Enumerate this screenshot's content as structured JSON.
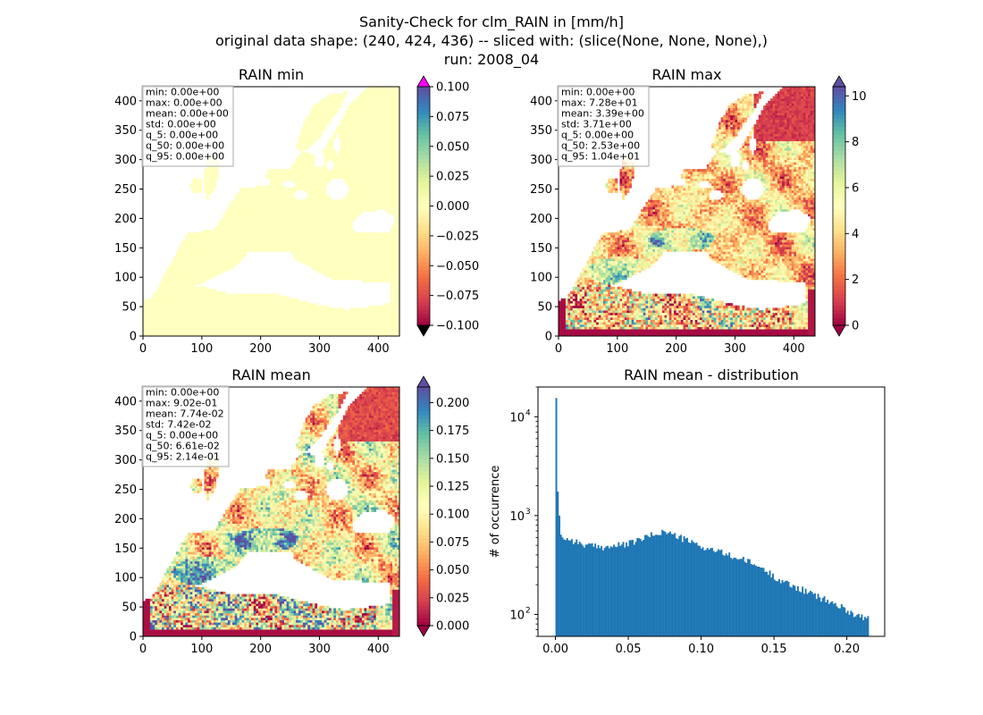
{
  "figure": {
    "title_lines": [
      "Sanity-Check for clm_RAIN in [mm/h]",
      "original data shape: (240, 424, 436) -- sliced with: (slice(None, None, None),)",
      "run: 2008_04"
    ]
  },
  "colormap": {
    "name": "Spectral",
    "stops": [
      "#9e0142",
      "#d53e4f",
      "#f46d43",
      "#fdae61",
      "#fee08b",
      "#ffffbf",
      "#e6f598",
      "#abdda4",
      "#66c2a5",
      "#3288bd",
      "#5e4fa2"
    ],
    "over_color_min_panel": "#ff00ff",
    "under_color": "#000000",
    "uniform_field_color": "#ffffbf",
    "hist_bar_color": "#1f77b4"
  },
  "chart_data": [
    {
      "type": "heatmap",
      "title": "RAIN min",
      "xticks": [
        0,
        100,
        200,
        300,
        400
      ],
      "yticks": [
        0,
        50,
        100,
        150,
        200,
        250,
        300,
        350,
        400
      ],
      "xlim": [
        0,
        436
      ],
      "ylim": [
        0,
        424
      ],
      "stats": [
        "min: 0.00e+00",
        "max: 0.00e+00",
        "mean: 0.00e+00",
        "std: 0.00e+00",
        "q_5: 0.00e+00",
        "q_50: 0.00e+00",
        "q_95: 0.00e+00"
      ],
      "colorbar": {
        "min": -0.1,
        "max": 0.1,
        "extend": "both",
        "ticks": [
          -0.1,
          -0.075,
          -0.05,
          -0.025,
          0.0,
          0.025,
          0.05,
          0.075,
          0.1
        ],
        "tick_labels": [
          "−0.100",
          "−0.075",
          "−0.050",
          "−0.025",
          "0.000",
          "0.025",
          "0.050",
          "0.075",
          "0.100"
        ]
      }
    },
    {
      "type": "heatmap",
      "title": "RAIN max",
      "xticks": [
        0,
        100,
        200,
        300,
        400
      ],
      "yticks": [
        0,
        50,
        100,
        150,
        200,
        250,
        300,
        350,
        400
      ],
      "xlim": [
        0,
        436
      ],
      "ylim": [
        0,
        424
      ],
      "stats": [
        "min: 0.00e+00",
        "max: 7.28e+01",
        "mean: 3.39e+00",
        "std: 3.71e+00",
        "q_5: 0.00e+00",
        "q_50: 2.53e+00",
        "q_95: 1.04e+01"
      ],
      "colorbar": {
        "min": 0,
        "max": 10.4,
        "extend": "both",
        "ticks": [
          0,
          2,
          4,
          6,
          8,
          10
        ],
        "tick_labels": [
          "0",
          "2",
          "4",
          "6",
          "8",
          "10"
        ]
      }
    },
    {
      "type": "heatmap",
      "title": "RAIN mean",
      "xticks": [
        0,
        100,
        200,
        300,
        400
      ],
      "yticks": [
        0,
        50,
        100,
        150,
        200,
        250,
        300,
        350,
        400
      ],
      "xlim": [
        0,
        436
      ],
      "ylim": [
        0,
        424
      ],
      "stats": [
        "min: 0.00e+00",
        "max: 9.02e-01",
        "mean: 7.74e-02",
        "std: 7.42e-02",
        "q_5: 0.00e+00",
        "q_50: 6.61e-02",
        "q_95: 2.14e-01"
      ],
      "colorbar": {
        "min": 0,
        "max": 0.214,
        "extend": "both",
        "ticks": [
          0,
          0.025,
          0.05,
          0.075,
          0.1,
          0.125,
          0.15,
          0.175,
          0.2
        ],
        "tick_labels": [
          "0.000",
          "0.025",
          "0.050",
          "0.075",
          "0.100",
          "0.125",
          "0.150",
          "0.175",
          "0.200"
        ]
      }
    },
    {
      "type": "bar",
      "title": "RAIN mean - distribution",
      "ylabel": "# of occurrence",
      "xlabel": "",
      "yscale": "log",
      "xlim": [
        -0.012,
        0.226
      ],
      "ylim": [
        60,
        20000
      ],
      "xticks": [
        0,
        0.05,
        0.1,
        0.15,
        0.2
      ],
      "xtick_labels": [
        "0.00",
        "0.05",
        "0.10",
        "0.15",
        "0.20"
      ],
      "yticks": [
        100,
        1000,
        10000
      ],
      "ytick_labels": [
        "10",
        "10",
        "10"
      ],
      "ytick_exponents": [
        "2",
        "3",
        "4"
      ],
      "bin_width": 0.00107,
      "x": [
        0.0,
        0.00107,
        0.00214,
        0.00321,
        0.00428,
        0.01,
        0.02,
        0.03,
        0.04,
        0.05,
        0.06,
        0.07,
        0.075,
        0.08,
        0.09,
        0.1,
        0.11,
        0.12,
        0.13,
        0.14,
        0.15,
        0.16,
        0.17,
        0.18,
        0.19,
        0.2,
        0.205,
        0.21,
        0.214
      ],
      "values": [
        15500,
        1750,
        1000,
        640,
        600,
        570,
        500,
        480,
        490,
        520,
        590,
        670,
        690,
        640,
        560,
        480,
        440,
        390,
        350,
        300,
        240,
        200,
        175,
        150,
        130,
        110,
        100,
        95,
        90
      ]
    }
  ]
}
